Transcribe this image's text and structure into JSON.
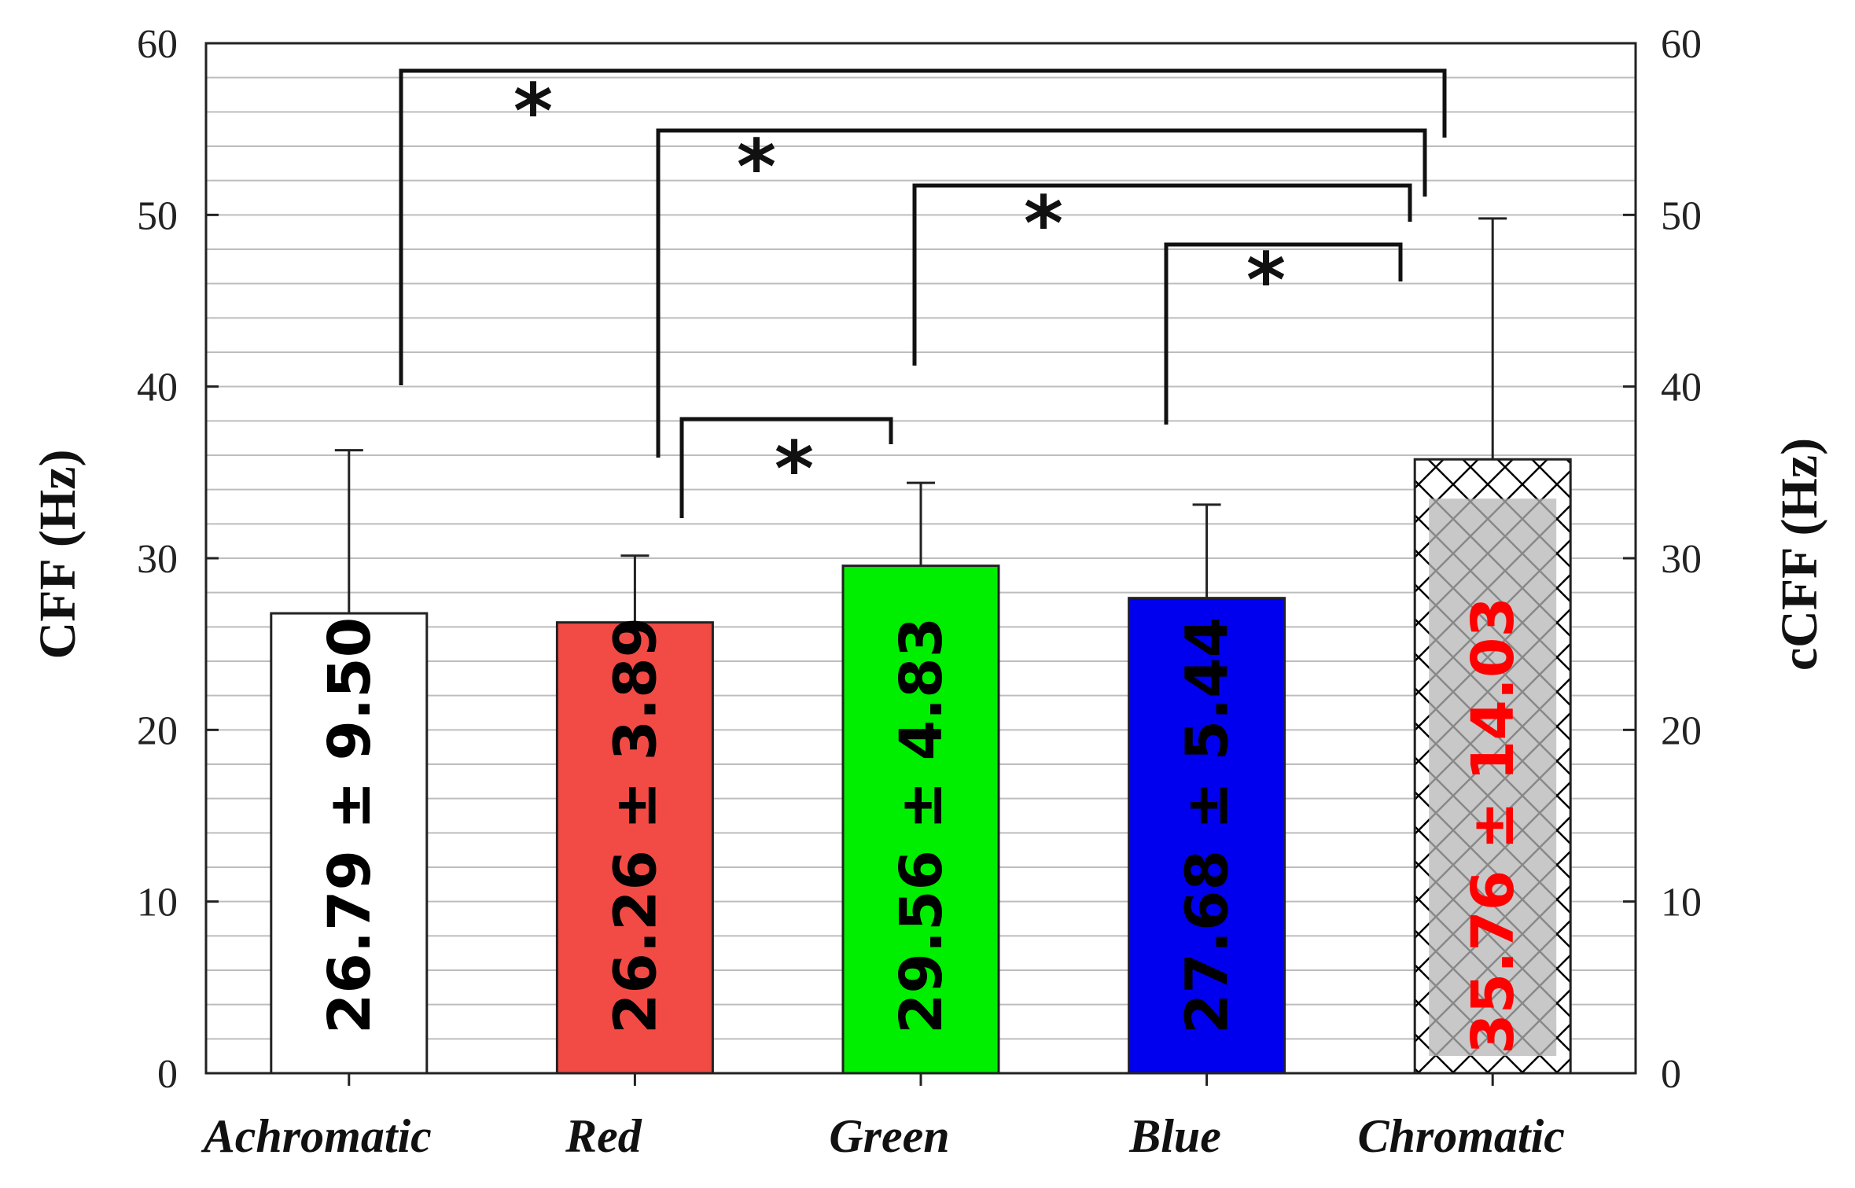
{
  "chart_data": {
    "type": "bar",
    "title": "",
    "ylabel": "CFF (Hz)",
    "y2label": "cCFF (Hz)",
    "ylim": [
      0,
      60
    ],
    "y2lim": [
      0,
      60
    ],
    "y_ticks": [
      "0",
      "10",
      "20",
      "30",
      "40",
      "50",
      "60"
    ],
    "y2_ticks": [
      "0",
      "10",
      "20",
      "30",
      "40",
      "50",
      "60"
    ],
    "grid": true,
    "categories": [
      "Achromatic",
      "Red",
      "Green",
      "Blue",
      "Chromatic"
    ],
    "values": [
      26.79,
      26.26,
      29.56,
      27.68,
      35.76
    ],
    "errors": [
      9.5,
      3.89,
      4.83,
      5.44,
      14.03
    ],
    "bar_labels": [
      "26.79 ± 9.50",
      "26.26 ± 3.89",
      "29.56 ± 4.83",
      "27.68 ± 5.44",
      "35.76 ± 14.03"
    ],
    "bar_colors": [
      "#ffffff",
      "#f24b45",
      "#00ee00",
      "#0000ee",
      "hatched"
    ],
    "bar_label_colors": [
      "#000000",
      "#000000",
      "#000000",
      "#000000",
      "#ff0000"
    ],
    "significance": [
      {
        "from": "Red",
        "to": "Green",
        "marker": "*"
      },
      {
        "from": "Blue",
        "to": "Chromatic",
        "marker": "*"
      },
      {
        "from": "Green",
        "to": "Chromatic",
        "marker": "*"
      },
      {
        "from": "Red",
        "to": "Chromatic",
        "marker": "*"
      },
      {
        "from": "Achromatic",
        "to": "Chromatic",
        "marker": "*"
      }
    ]
  }
}
